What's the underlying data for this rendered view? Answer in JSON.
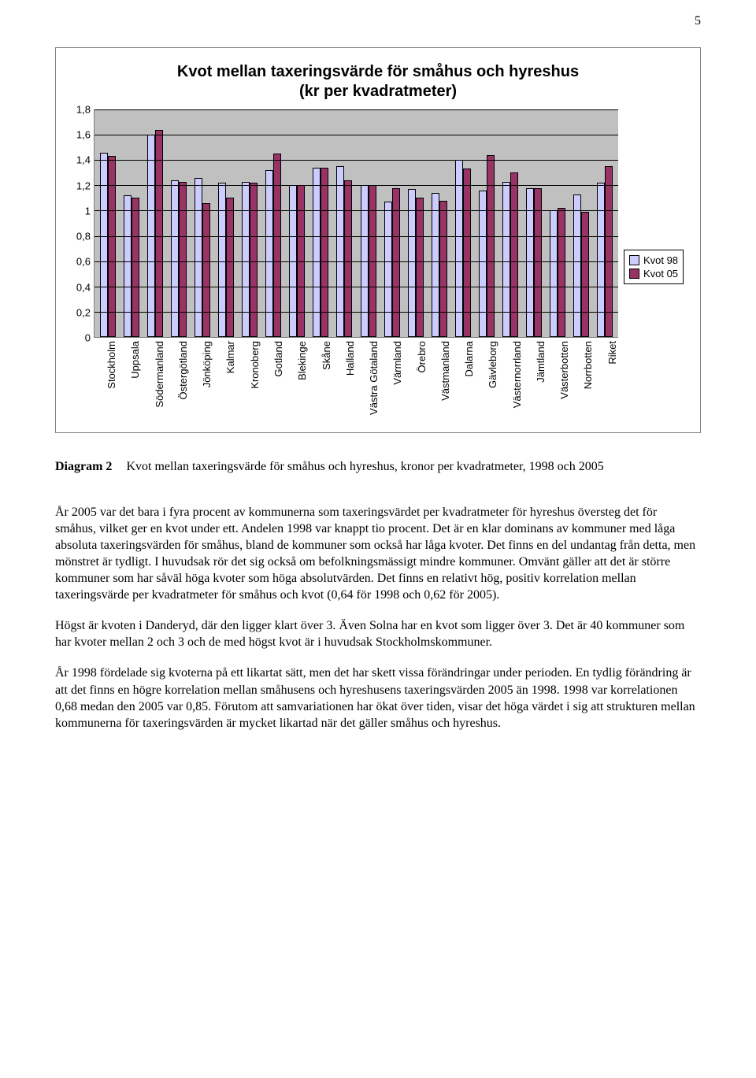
{
  "page_number": "5",
  "chart": {
    "type": "bar",
    "title_line1": "Kvot mellan taxeringsvärde för småhus och hyreshus",
    "title_line2": "(kr per kvadratmeter)",
    "title_fontsize": 20,
    "label_fontsize": 13,
    "plot_bg": "#c0c0c0",
    "frame_border": "#808080",
    "grid_color": "#000000",
    "ymax": 1.8,
    "ytick_step": 0.2,
    "yticks": [
      "0",
      "0,2",
      "0,4",
      "0,6",
      "0,8",
      "1",
      "1,2",
      "1,4",
      "1,6",
      "1,8"
    ],
    "series": [
      {
        "name": "Kvot 98",
        "color": "#ccccff"
      },
      {
        "name": "Kvot 05",
        "color": "#993366"
      }
    ],
    "categories": [
      "Stockholm",
      "Uppsala",
      "Södermanland",
      "Östergötland",
      "Jönköping",
      "Kalmar",
      "Kronoberg",
      "Gotland",
      "Blekinge",
      "Skåne",
      "Halland",
      "Västra Götaland",
      "Värmland",
      "Örebro",
      "Västmanland",
      "Dalarna",
      "Gävleborg",
      "Västernorrland",
      "Jämtland",
      "Västerbotten",
      "Norrbotten",
      "Riket"
    ],
    "values98": [
      1.46,
      1.12,
      1.6,
      1.24,
      1.26,
      1.22,
      1.23,
      1.32,
      1.2,
      1.34,
      1.35,
      1.2,
      1.07,
      1.17,
      1.14,
      1.4,
      1.16,
      1.23,
      1.18,
      1.0,
      1.13,
      1.22
    ],
    "values05": [
      1.43,
      1.1,
      1.64,
      1.23,
      1.06,
      1.1,
      1.22,
      1.45,
      1.2,
      1.34,
      1.24,
      1.2,
      1.18,
      1.1,
      1.08,
      1.33,
      1.44,
      1.3,
      1.18,
      1.02,
      0.99,
      1.35
    ]
  },
  "caption": {
    "label": "Diagram 2",
    "text": "Kvot mellan taxeringsvärde för småhus och hyreshus, kronor per kvadratmeter, 1998 och 2005"
  },
  "paragraphs": [
    "År 2005 var det bara i fyra procent av kommunerna som taxeringsvärdet per kvadratmeter för hyreshus översteg det för småhus, vilket ger en kvot under ett. Andelen 1998 var knappt tio procent. Det är en klar dominans av kommuner med låga absoluta taxeringsvärden för småhus, bland de kommuner som också har låga kvoter. Det finns en del undantag från detta, men mönstret är tydligt. I huvudsak rör det sig också om befolkningsmässigt mindre kommuner. Omvänt gäller att det är större kommuner som har såväl höga kvoter som höga absolutvärden. Det finns en relativt hög, positiv korrelation mellan taxeringsvärde per kvadratmeter för småhus och kvot (0,64 för 1998 och 0,62 för 2005).",
    "Högst är kvoten i Danderyd, där den ligger klart över 3. Även Solna har en kvot som ligger över 3. Det är 40 kommuner som har kvoter mellan 2 och 3 och de med högst kvot är i huvudsak Stockholmskommuner.",
    "År 1998 fördelade sig kvoterna på ett likartat sätt, men det har skett vissa förändringar under perioden. En tydlig förändring är att det finns en högre korrelation mellan småhusens och hyreshusens taxeringsvärden 2005 än 1998. 1998 var korrelationen 0,68 medan den 2005 var 0,85. Förutom att samvariationen har ökat över tiden, visar det höga värdet i sig att strukturen mellan kommunerna för taxeringsvärden är mycket likartad när det gäller småhus och hyreshus."
  ]
}
